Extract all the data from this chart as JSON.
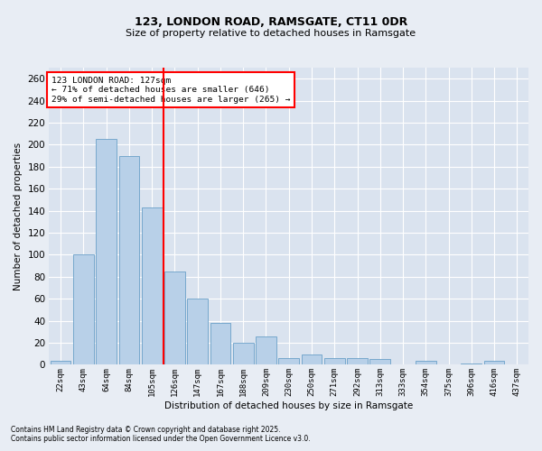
{
  "title1": "123, LONDON ROAD, RAMSGATE, CT11 0DR",
  "title2": "Size of property relative to detached houses in Ramsgate",
  "xlabel": "Distribution of detached houses by size in Ramsgate",
  "ylabel": "Number of detached properties",
  "categories": [
    "22sqm",
    "43sqm",
    "64sqm",
    "84sqm",
    "105sqm",
    "126sqm",
    "147sqm",
    "167sqm",
    "188sqm",
    "209sqm",
    "230sqm",
    "250sqm",
    "271sqm",
    "292sqm",
    "313sqm",
    "333sqm",
    "354sqm",
    "375sqm",
    "396sqm",
    "416sqm",
    "437sqm"
  ],
  "values": [
    4,
    100,
    205,
    190,
    143,
    85,
    60,
    38,
    20,
    26,
    6,
    9,
    6,
    6,
    5,
    0,
    4,
    0,
    1,
    4,
    0
  ],
  "bar_color": "#b8d0e8",
  "bar_edge_color": "#6aa0c8",
  "vline_color": "red",
  "vline_index": 4.5,
  "annotation_text": "123 LONDON ROAD: 127sqm\n← 71% of detached houses are smaller (646)\n29% of semi-detached houses are larger (265) →",
  "annotation_box_color": "white",
  "annotation_box_edge": "red",
  "ylim": [
    0,
    270
  ],
  "yticks": [
    0,
    20,
    40,
    60,
    80,
    100,
    120,
    140,
    160,
    180,
    200,
    220,
    240,
    260
  ],
  "footer1": "Contains HM Land Registry data © Crown copyright and database right 2025.",
  "footer2": "Contains public sector information licensed under the Open Government Licence v3.0.",
  "bg_color": "#e8edf4",
  "plot_bg_color": "#dae3ef"
}
